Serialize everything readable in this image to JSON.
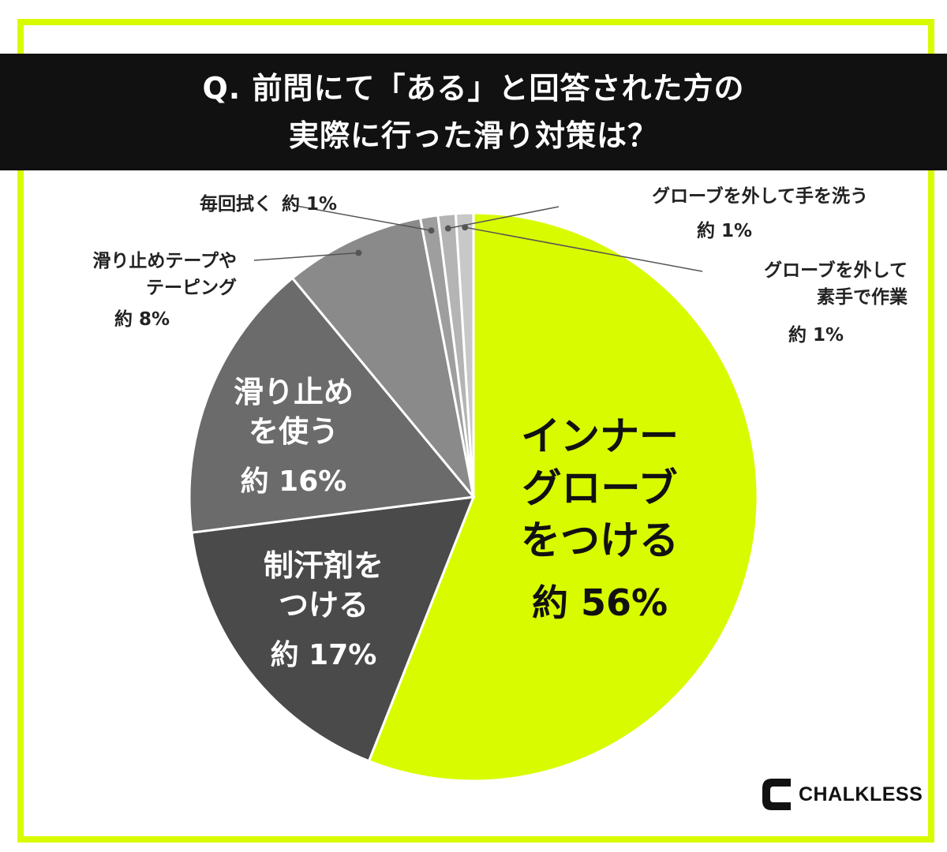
{
  "title_lines": [
    "Q. 前問にて「ある」と回答された方の",
    "実際に行った滑り対策は？"
  ],
  "brand": {
    "name": "CHALKLESS",
    "icon": "chalkless-c-logo-icon"
  },
  "colors": {
    "accent": "#d9fb00",
    "title_bg": "#111111"
  },
  "chart_data": {
    "type": "pie",
    "title": "Q. 前問にて「ある」と回答された方の実際に行った滑り対策は？",
    "slices": [
      {
        "label_lines": [
          "インナー",
          "グローブ",
          "をつける"
        ],
        "value_text": "約 56%",
        "value": 56,
        "color": "#d9fb00",
        "text_color": "#111111",
        "placement": "inside"
      },
      {
        "label_lines": [
          "制汗剤を",
          "つける"
        ],
        "value_text": "約 17%",
        "value": 17,
        "color": "#4a4a4a",
        "text_color": "#ffffff",
        "placement": "inside"
      },
      {
        "label_lines": [
          "滑り止め",
          "を使う"
        ],
        "value_text": "約 16%",
        "value": 16,
        "color": "#6b6b6b",
        "text_color": "#ffffff",
        "placement": "inside"
      },
      {
        "label_lines": [
          "滑り止めテープや",
          "テーピング"
        ],
        "value_text": "約 8%",
        "value": 8,
        "color": "#8a8a8a",
        "text_color": "#222222",
        "placement": "outside-left"
      },
      {
        "label_lines": [
          "毎回拭く"
        ],
        "value_text": "約 1%",
        "value": 1,
        "color": "#9e9e9e",
        "text_color": "#222222",
        "placement": "outside-left"
      },
      {
        "label_lines": [
          "グローブを外して手を洗う"
        ],
        "value_text": "約 1%",
        "value": 1,
        "color": "#b4b4b4",
        "text_color": "#222222",
        "placement": "outside-right"
      },
      {
        "label_lines": [
          "グローブを外して",
          "素手で作業"
        ],
        "value_text": "約 1%",
        "value": 1,
        "color": "#c8c8c8",
        "text_color": "#222222",
        "placement": "outside-right"
      }
    ],
    "start": "top",
    "direction": "clockwise",
    "legend": "none"
  }
}
